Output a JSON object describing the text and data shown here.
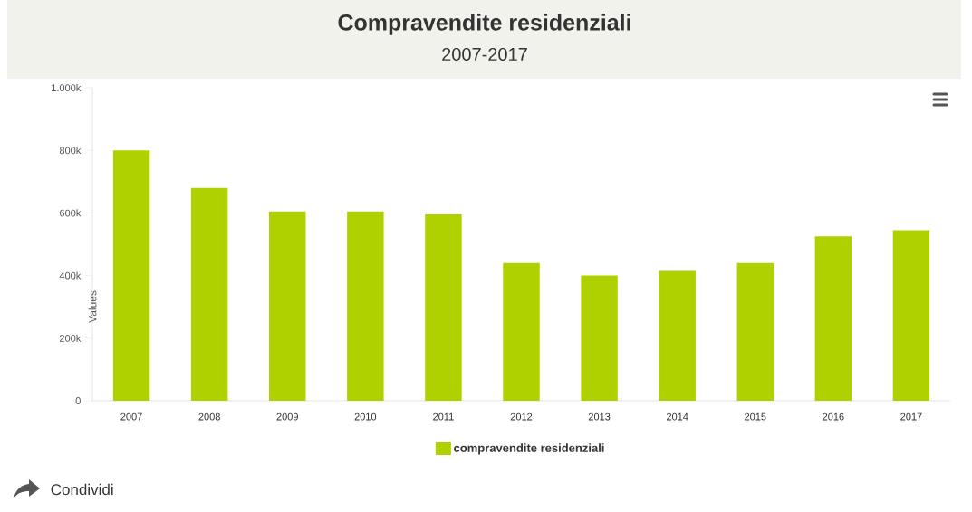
{
  "chart_data": {
    "type": "bar",
    "title": "Compravendite residenziali",
    "subtitle": "2007-2017",
    "ylabel": "Values",
    "categories": [
      "2007",
      "2008",
      "2009",
      "2010",
      "2011",
      "2012",
      "2013",
      "2014",
      "2015",
      "2016",
      "2017"
    ],
    "series": [
      {
        "name": "compravendite residenziali",
        "color": "#b0d100",
        "values": [
          800,
          680,
          605,
          605,
          595,
          440,
          400,
          415,
          440,
          525,
          545
        ]
      }
    ],
    "ylim": [
      0,
      1000
    ],
    "yticks": [
      0,
      {
        "value": 200,
        "label": "200k"
      },
      {
        "value": 400,
        "label": "400k"
      },
      {
        "value": 600,
        "label": "600k"
      },
      {
        "value": 800,
        "label": "800k"
      },
      {
        "value": 1000,
        "label": "1.000k"
      }
    ],
    "legend": "bottom",
    "annotations": [
      "Condividi"
    ]
  }
}
